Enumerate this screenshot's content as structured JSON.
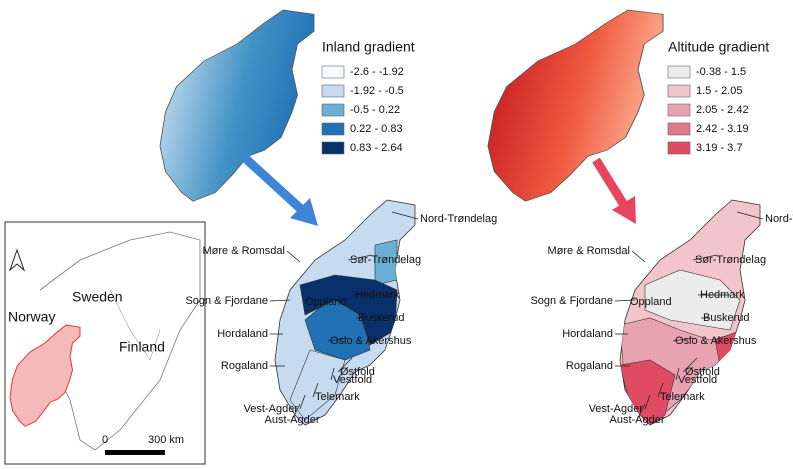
{
  "inset": {
    "countries": [
      "Norway",
      "Sweden",
      "Finland"
    ],
    "scale_labels": [
      "0",
      "300 km"
    ]
  },
  "inland_map": {
    "legend_title": "Inland gradient",
    "legend": [
      {
        "label": "-2.6 - -1.92",
        "color": "#f7fbff"
      },
      {
        "label": "-1.92 - -0.5",
        "color": "#c6dbef"
      },
      {
        "label": "-0.5 - 0.22",
        "color": "#6baed6"
      },
      {
        "label": "0.22 - 0.83",
        "color": "#2171b5"
      },
      {
        "label": "0.83 - 2.64",
        "color": "#08306b"
      }
    ]
  },
  "altitude_map": {
    "legend_title": "Altitude gradient",
    "legend": [
      {
        "label": "-0.38 - 1.5",
        "color": "#ececec"
      },
      {
        "label": "1.5 - 2.05",
        "color": "#f2c4cc"
      },
      {
        "label": "2.05 - 2.42",
        "color": "#e9a3b0"
      },
      {
        "label": "2.42 - 3.19",
        "color": "#df7a8c"
      },
      {
        "label": "3.19 - 3.7",
        "color": "#e04a63"
      }
    ]
  },
  "regions": [
    "Nord-Trøndelag",
    "Møre & Romsdal",
    "Sør-Trøndelag",
    "Sogn & Fjordane",
    "Hedmark",
    "Oppland",
    "Buskerud",
    "Hordaland",
    "Oslo & Akershus",
    "Rogaland",
    "Østfold",
    "Vestfold",
    "Telemark",
    "Vest-Agder",
    "Aust-Agder"
  ]
}
